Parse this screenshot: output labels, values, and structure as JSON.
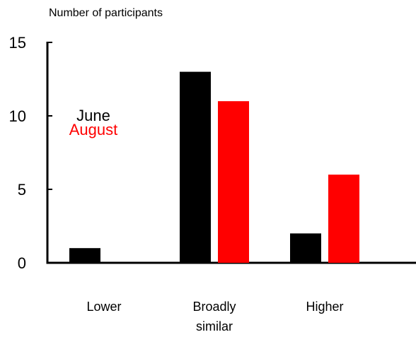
{
  "chart_data": {
    "type": "bar",
    "ylabel": "Number of participants",
    "categories": [
      "Lower",
      "Broadly\nsimilar",
      "Higher"
    ],
    "series": [
      {
        "name": "June",
        "values": [
          1,
          13,
          2
        ],
        "color": "#000000"
      },
      {
        "name": "August",
        "values": [
          0,
          11,
          6
        ],
        "color": "#ff0000"
      }
    ],
    "ylim": [
      0,
      15
    ],
    "yticks": [
      0,
      5,
      10,
      15
    ],
    "grid": false,
    "legend_position": "inside-left"
  }
}
